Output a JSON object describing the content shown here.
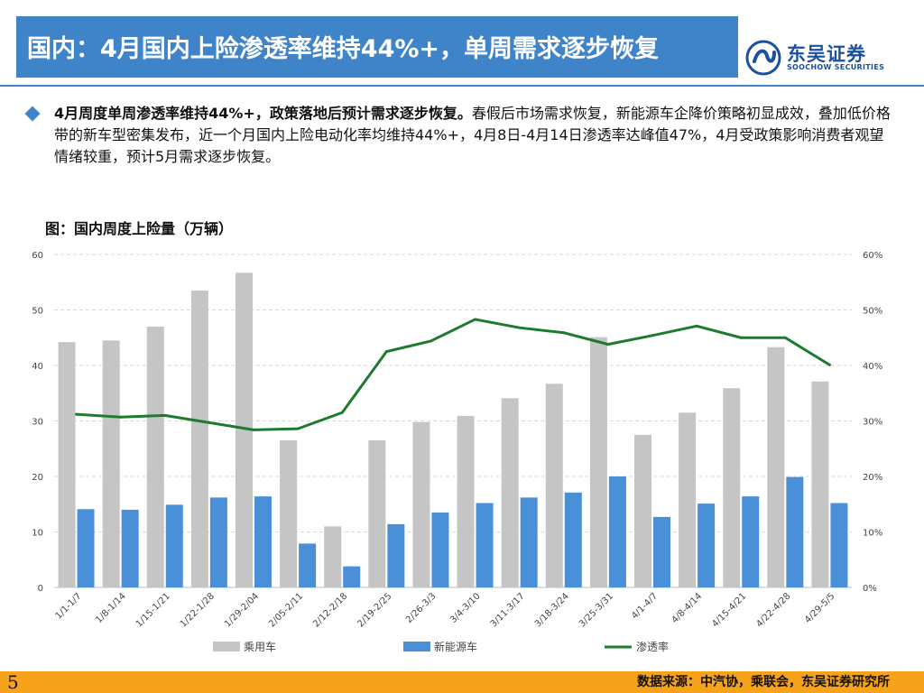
{
  "header": {
    "title": "国内：4月国内上险渗透率维持44%+，单周需求逐步恢复",
    "logo_cn": "东吴证券",
    "logo_en": "SOOCHOW SECURITIES"
  },
  "summary": {
    "bold_lead": "4月周度单周渗透率维持44%+，政策落地后预计需求逐步恢复。",
    "body": "春假后市场需求恢复，新能源车企降价策略初显成效，叠加低价格带的新车型密集发布，近一个月国内上险电动化率均维持44%+，4月8日-4月14日渗透率达峰值47%，4月受政策影响消费者观望情绪较重，预计5月需求逐步恢复。"
  },
  "figure_title": "图：国内周度上险量（万辆）",
  "footer": {
    "page": "5",
    "source": "数据来源：中汽协，乘联会，东吴证券研究所"
  },
  "colors": {
    "title_bar": "#3f84c8",
    "passenger": "#c5c5c5",
    "nev": "#4a90d9",
    "penetration": "#1e7b2e",
    "footer": "#f6a21b"
  },
  "chart_data": {
    "type": "bar",
    "categories": [
      "1/1-1/7",
      "1/8-1/14",
      "1/15-1/21",
      "1/22-1/28",
      "1/29-2/04",
      "2/05-2/11",
      "2/12-2/18",
      "2/19-2/25",
      "2/26-3/3",
      "3/4-3/10",
      "3/11-3/17",
      "3/18-3/24",
      "3/25-3/31",
      "4/1-4/7",
      "4/8-4/14",
      "4/15-4/21",
      "4/22-4/28",
      "4/29-5/5"
    ],
    "series": [
      {
        "name": "乘用车",
        "axis": "left",
        "values": [
          44.2,
          44.5,
          47.0,
          53.5,
          56.7,
          26.5,
          11.0,
          26.5,
          29.8,
          30.9,
          34.1,
          36.7,
          45.1,
          27.5,
          31.5,
          35.9,
          43.3,
          37.1
        ]
      },
      {
        "name": "新能源车",
        "axis": "left",
        "values": [
          14.1,
          14.0,
          14.9,
          16.2,
          16.4,
          7.9,
          3.8,
          11.4,
          13.5,
          15.2,
          16.2,
          17.1,
          20.0,
          12.7,
          15.1,
          16.4,
          19.9,
          15.2
        ]
      },
      {
        "name": "渗透率",
        "axis": "right",
        "type": "line",
        "values": [
          31.2,
          30.7,
          31.0,
          29.7,
          28.4,
          28.6,
          31.5,
          42.5,
          44.4,
          48.3,
          46.8,
          45.9,
          43.8,
          45.4,
          47.1,
          45.0,
          45.0,
          40.1
        ]
      }
    ],
    "y_left": {
      "min": 0,
      "max": 60,
      "ticks": [
        "0",
        "10",
        "20",
        "30",
        "40",
        "50",
        "60"
      ]
    },
    "y_right": {
      "min": 0,
      "max": 60,
      "ticks": [
        "0%",
        "10%",
        "20%",
        "30%",
        "40%",
        "50%",
        "60%"
      ]
    },
    "grid": true,
    "legend_position": "bottom"
  }
}
